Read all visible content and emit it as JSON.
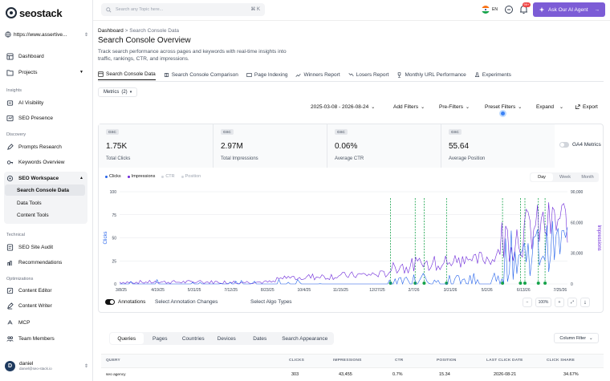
{
  "brand": {
    "name": "seostack",
    "accent": "#7c5cd6"
  },
  "site_selector": {
    "value": "https://www.assertive..."
  },
  "sidebar": {
    "top_items": [
      {
        "label": "Dashboard",
        "icon": "dashboard-icon"
      },
      {
        "label": "Projects",
        "icon": "folder-icon"
      }
    ],
    "insights_heading": "Insights",
    "insights_items": [
      {
        "label": "AI Visibility"
      },
      {
        "label": "SEO Presence"
      }
    ],
    "discovery_heading": "Discovery",
    "discovery_items": [
      {
        "label": "Prompts Research"
      },
      {
        "label": "Keywords Overview"
      }
    ],
    "workspace_label": "SEO Workspace",
    "workspace_items": [
      {
        "label": "Search Console Data"
      },
      {
        "label": "Data Tools"
      },
      {
        "label": "Content Tools"
      }
    ],
    "technical_heading": "Technical",
    "technical_items": [
      {
        "label": "SEO Site Audit"
      },
      {
        "label": "Recommendations"
      }
    ],
    "optimizations_heading": "Optimizations",
    "optimization_items": [
      {
        "label": "Content Editor"
      },
      {
        "label": "Content Writer"
      },
      {
        "label": "MCP"
      },
      {
        "label": "Team Members"
      }
    ],
    "user": {
      "name": "daniel",
      "email": "daniel@seo-stack.io",
      "initial": "D"
    }
  },
  "topbar": {
    "search_placeholder": "Search any Topic here...",
    "shortcut": "⌘ K",
    "language": "EN",
    "notif_count": "99+",
    "ai_button": "Ask Our AI Agent"
  },
  "header": {
    "breadcrumb_root": "Dashboard",
    "breadcrumb_sep": ">",
    "breadcrumb_current": "Search Console Data",
    "title": "Search Console Overview",
    "description": "Track search performance across pages and keywords with real-time insights into traffic, rankings, CTR, and impressions."
  },
  "tabs": [
    "Search Console Data",
    "Search Console Comparison",
    "Page Indexing",
    "Winners Report",
    "Losers Report",
    "Monthly URL Performance",
    "Experiments"
  ],
  "filters": {
    "metrics": "Metrics",
    "metrics_count": "(2)",
    "date_range": "2025-03-08 - 2026-08-24",
    "add": "Add Filters",
    "pre": "Pre-Filters",
    "preset": "Preset Filters",
    "expand": "Expand",
    "export": "Export"
  },
  "cards": [
    {
      "badge": "GSC",
      "value": "1.75K",
      "label": "Total Clicks"
    },
    {
      "badge": "GSC",
      "value": "2.97M",
      "label": "Total Impressions"
    },
    {
      "badge": "GSC",
      "value": "0.06%",
      "label": "Average CTR"
    },
    {
      "badge": "GSC",
      "value": "55.64",
      "label": "Average Position"
    }
  ],
  "ga4_label": "GA4 Metrics",
  "legend": [
    "Clicks",
    "Impressions",
    "CTR",
    "Position"
  ],
  "granularity": [
    "Day",
    "Week",
    "Month"
  ],
  "chart_data": {
    "type": "line",
    "x_ticks": [
      "3/8/25",
      "4/19/25",
      "5/31/25",
      "7/12/25",
      "8/23/25",
      "10/4/25",
      "11/15/25",
      "12/27/25",
      "2/7/26",
      "3/21/26",
      "5/2/26",
      "6/13/26",
      "7/25/26"
    ],
    "ylabel": "Clicks",
    "y2label": "Impressions",
    "ylim": [
      0,
      100
    ],
    "y2lim": [
      0,
      90000
    ],
    "y_ticks": [
      "0",
      "25",
      "50",
      "75",
      "100"
    ],
    "y2_ticks": [
      "0",
      "30,000",
      "60,000",
      "90,000"
    ],
    "series": [
      {
        "name": "Clicks",
        "color": "#2563eb"
      },
      {
        "name": "Impressions",
        "color": "#6d28d9"
      }
    ],
    "annotation_color": "#16a34a"
  },
  "annotations": {
    "label": "Annotations",
    "select_changes": "Select Annotation Changes",
    "select_algo": "Select Algo Types",
    "zoom": "100%"
  },
  "table": {
    "tabs": [
      "Queries",
      "Pages",
      "Countries",
      "Devices",
      "Dates",
      "Search Appearance"
    ],
    "column_filter": "Column Filter",
    "columns": [
      "QUERY",
      "CLICKS",
      "IMPRESSIONS",
      "CTR",
      "POSITION",
      "LAST CLICK DATE",
      "CLICK SHARE"
    ],
    "rows": [
      {
        "query": "seo agency",
        "clicks": "303",
        "impressions": "43,455",
        "ctr": "0.7%",
        "position": "15.34",
        "last_click": "2026-08-21",
        "share": "34.67%"
      }
    ]
  }
}
